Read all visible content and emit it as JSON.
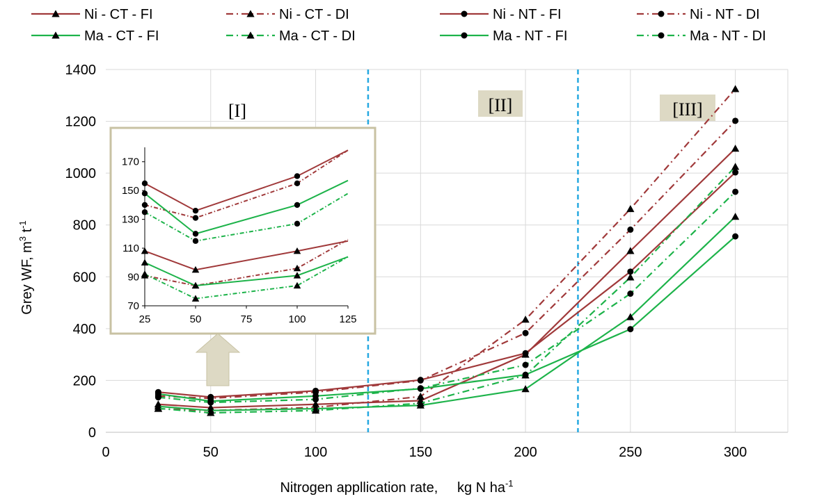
{
  "chart_data": {
    "type": "line",
    "xlabel": "Nitrogen appllication rate,     kg N ha",
    "xlabel_sup": "-1",
    "ylabel": "Grey WF, m",
    "ylabel_sup1": "3",
    "ylabel_mid": " t",
    "ylabel_sup2": "-1",
    "xlim": [
      0,
      325
    ],
    "ylim": [
      0,
      1400
    ],
    "x_ticks": [
      0,
      50,
      100,
      150,
      200,
      250,
      300
    ],
    "y_ticks": [
      0,
      200,
      400,
      600,
      800,
      1000,
      1200,
      1400
    ],
    "grid": true,
    "legend_position": "top",
    "regions": [
      {
        "label": "[I]"
      },
      {
        "label": "[II]"
      },
      {
        "label": "[III]"
      }
    ],
    "region_boundaries": [
      125,
      225
    ],
    "x": [
      25,
      50,
      100,
      150,
      200,
      250,
      300
    ],
    "series": [
      {
        "name": "Ni - CT - FI",
        "color": "#A0393A",
        "dash": "solid",
        "marker": "triangle",
        "values": [
          108,
          95,
          108,
          122,
          300,
          700,
          1095
        ]
      },
      {
        "name": "Ni - CT - DI",
        "color": "#A0393A",
        "dash": "dashdot",
        "marker": "triangle",
        "values": [
          91,
          84,
          96,
          138,
          435,
          862,
          1325
        ]
      },
      {
        "name": "Ni - NT - FI",
        "color": "#A0393A",
        "dash": "solid",
        "marker": "circle",
        "values": [
          155,
          136,
          160,
          202,
          305,
          620,
          1003
        ]
      },
      {
        "name": "Ni - NT - DI",
        "color": "#A0393A",
        "dash": "dashdot",
        "marker": "circle",
        "values": [
          140,
          131,
          155,
          200,
          383,
          782,
          1202
        ]
      },
      {
        "name": "Ma - CT - FI",
        "color": "#1DB34A",
        "dash": "solid",
        "marker": "triangle",
        "values": [
          100,
          84,
          91,
          104,
          167,
          445,
          832
        ]
      },
      {
        "name": "Ma - CT - DI",
        "color": "#1DB34A",
        "dash": "dashdot",
        "marker": "triangle",
        "values": [
          92,
          75,
          84,
          112,
          220,
          598,
          1025
        ]
      },
      {
        "name": "Ma - NT - FI",
        "color": "#1DB34A",
        "dash": "solid",
        "marker": "circle",
        "values": [
          148,
          120,
          140,
          168,
          222,
          398,
          756
        ]
      },
      {
        "name": "Ma - NT - DI",
        "color": "#1DB34A",
        "dash": "dashdot",
        "marker": "circle",
        "values": [
          135,
          115,
          127,
          170,
          260,
          535,
          928
        ]
      }
    ],
    "inset": {
      "xlim": [
        25,
        125
      ],
      "ylim": [
        70,
        180
      ],
      "x_ticks": [
        25,
        50,
        75,
        100,
        125
      ],
      "y_ticks": [
        70,
        90,
        110,
        130,
        150,
        170
      ],
      "x": [
        25,
        50,
        100,
        125
      ],
      "series_values": [
        [
          108,
          95,
          108,
          115
        ],
        [
          91,
          84,
          96,
          116
        ],
        [
          155,
          136,
          160,
          178
        ],
        [
          140,
          131,
          155,
          178
        ],
        [
          100,
          84,
          91,
          104
        ],
        [
          92,
          75,
          84,
          104
        ],
        [
          148,
          120,
          140,
          157
        ],
        [
          135,
          115,
          127,
          148
        ]
      ]
    }
  }
}
